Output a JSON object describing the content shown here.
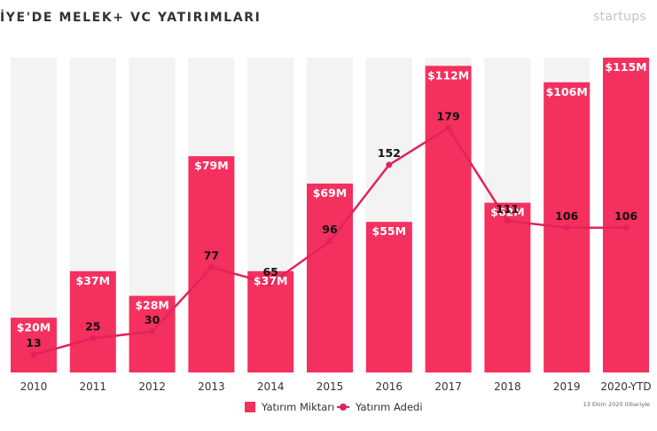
{
  "header": {
    "title": "İYE'DE MELEK+ VC YATIRIMLARI",
    "brand": "startups"
  },
  "colors": {
    "bar": "#f4305f",
    "bar_background": "#f3f3f4",
    "line": "#e0245a"
  },
  "chart_data": {
    "type": "bar",
    "title": "İYE'DE MELEK+ VC YATIRIMLARI",
    "categories": [
      "2010",
      "2011",
      "2012",
      "2013",
      "2014",
      "2015",
      "2016",
      "2017",
      "2018",
      "2019",
      "2020-YTD"
    ],
    "series": [
      {
        "name": "Yatırım Miktarı",
        "type": "bar",
        "values": [
          20,
          37,
          28,
          79,
          37,
          69,
          55,
          112,
          62,
          106,
          115
        ],
        "labels": [
          "$20M",
          "$37M",
          "$28M",
          "$79M",
          "$37M",
          "$69M",
          "$55M",
          "$112M",
          "$62M",
          "$106M",
          "$115M"
        ]
      },
      {
        "name": "Yatırım Adedi",
        "type": "line",
        "values": [
          13,
          25,
          30,
          77,
          65,
          96,
          152,
          179,
          111,
          106,
          106
        ],
        "labels": [
          "13",
          "25",
          "30",
          "77",
          "65",
          "96",
          "152",
          "179",
          "111",
          "106",
          "106"
        ]
      }
    ],
    "ylim_bar": [
      0,
      115
    ],
    "ylim_line": [
      0,
      250
    ],
    "grid": false,
    "legend_position": "bottom-center"
  },
  "legend": {
    "items": [
      {
        "label": "Yatırım Miktarı",
        "kind": "bar"
      },
      {
        "label": "Yatırım Adedi",
        "kind": "line"
      }
    ]
  },
  "footnote": "13 Ekim 2020 itibariyle"
}
